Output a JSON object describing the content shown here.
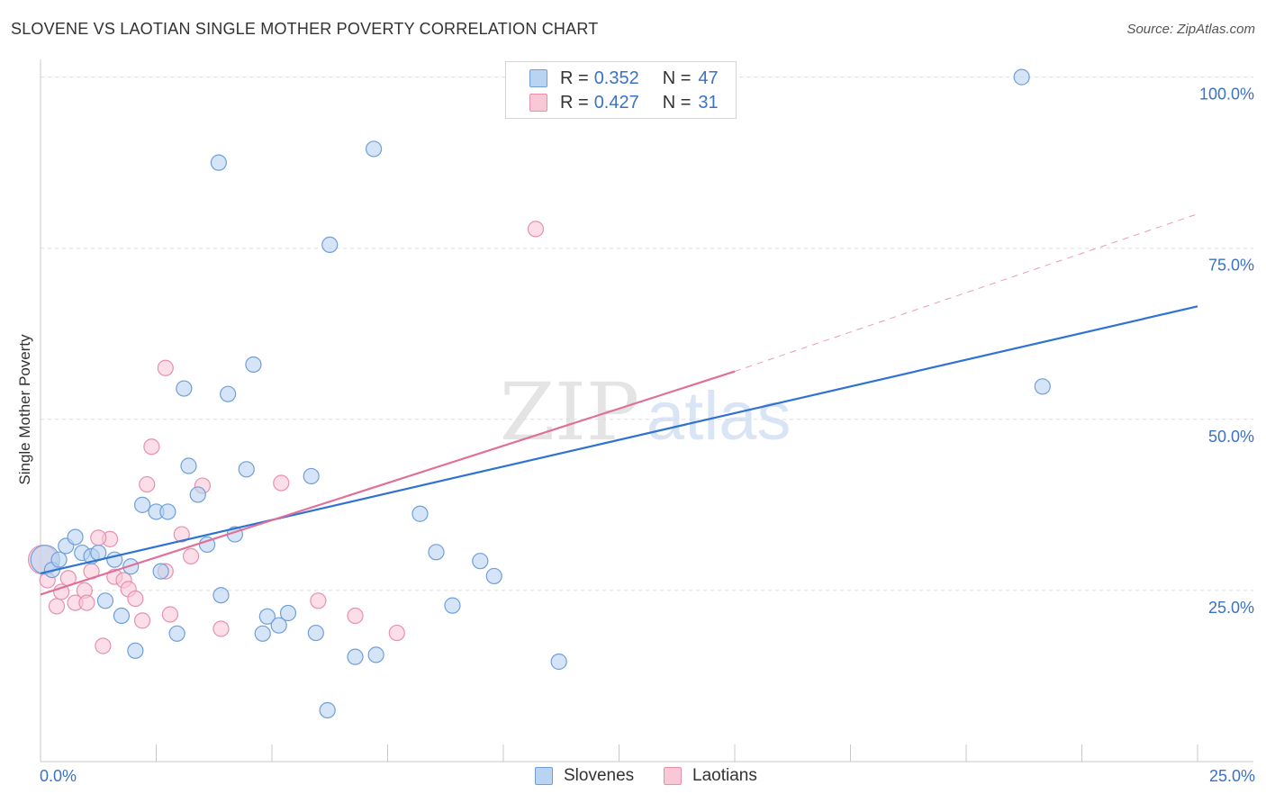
{
  "title": "SLOVENE VS LAOTIAN SINGLE MOTHER POVERTY CORRELATION CHART",
  "source": "Source: ZipAtlas.com",
  "watermark": {
    "part1": "ZIP",
    "part2": "atlas"
  },
  "legend": {
    "rows": [
      {
        "r_label": "R =",
        "r_value": "0.352",
        "n_label": "N =",
        "n_value": "47"
      },
      {
        "r_label": "R =",
        "r_value": "0.427",
        "n_label": "N =",
        "n_value": "31"
      }
    ]
  },
  "bottom_legend": {
    "series1": "Slovenes",
    "series2": "Laotians"
  },
  "x_axis": {
    "left_label": "0.0%",
    "right_label": "25.0%"
  },
  "chart_data": {
    "type": "scatter",
    "title": "SLOVENE VS LAOTIAN SINGLE MOTHER POVERTY CORRELATION CHART",
    "xlabel": "",
    "ylabel": "Single Mother Poverty",
    "xlim": [
      0,
      25
    ],
    "ylim": [
      0,
      101
    ],
    "y_ticks": [
      {
        "value": 25,
        "label": "25.0%"
      },
      {
        "value": 50,
        "label": "50.0%"
      },
      {
        "value": 75,
        "label": "75.0%"
      },
      {
        "value": 100,
        "label": "100.0%"
      }
    ],
    "colors": {
      "slovenes_fill": "#b9d3f2",
      "slovenes_stroke": "#6f9fdb",
      "slovenes_line": "#2f72d1",
      "laotians_fill": "#f8c8d7",
      "laotians_stroke": "#e890ae",
      "laotians_line": "#e0709a",
      "tick_label": "#3a72c8",
      "grid": "#dddddd"
    },
    "series": [
      {
        "name": "Slovenes",
        "points": [
          [
            0.1,
            29.5
          ],
          [
            0.25,
            28
          ],
          [
            0.4,
            29.5
          ],
          [
            0.55,
            31.5
          ],
          [
            0.75,
            32.8
          ],
          [
            0.9,
            30.5
          ],
          [
            1.1,
            30
          ],
          [
            1.25,
            30.5
          ],
          [
            1.4,
            23.5
          ],
          [
            1.6,
            29.5
          ],
          [
            1.75,
            21.3
          ],
          [
            1.95,
            28.5
          ],
          [
            2.05,
            16.2
          ],
          [
            2.2,
            37.5
          ],
          [
            2.5,
            36.5
          ],
          [
            2.6,
            27.8
          ],
          [
            2.75,
            36.5
          ],
          [
            2.95,
            18.7
          ],
          [
            3.1,
            54.5
          ],
          [
            3.2,
            43.2
          ],
          [
            3.4,
            39
          ],
          [
            3.6,
            31.7
          ],
          [
            3.85,
            87.5
          ],
          [
            3.9,
            24.3
          ],
          [
            4.05,
            53.7
          ],
          [
            4.2,
            33.2
          ],
          [
            4.45,
            42.7
          ],
          [
            4.6,
            58
          ],
          [
            4.8,
            18.7
          ],
          [
            4.9,
            21.2
          ],
          [
            5.15,
            19.9
          ],
          [
            5.35,
            21.7
          ],
          [
            5.85,
            41.7
          ],
          [
            5.95,
            18.8
          ],
          [
            6.2,
            7.5
          ],
          [
            6.25,
            75.5
          ],
          [
            6.8,
            15.3
          ],
          [
            7.2,
            89.5
          ],
          [
            7.25,
            15.6
          ],
          [
            8.2,
            36.2
          ],
          [
            8.55,
            30.6
          ],
          [
            8.9,
            22.8
          ],
          [
            9.5,
            29.3
          ],
          [
            9.8,
            27.1
          ],
          [
            11.2,
            14.6
          ],
          [
            21.2,
            100
          ],
          [
            21.65,
            54.8
          ]
        ]
      },
      {
        "name": "Laotians",
        "points": [
          [
            0.05,
            29.5
          ],
          [
            0.15,
            26.5
          ],
          [
            0.35,
            22.7
          ],
          [
            0.45,
            24.8
          ],
          [
            0.6,
            26.8
          ],
          [
            0.75,
            23.2
          ],
          [
            0.95,
            25
          ],
          [
            1.0,
            23.2
          ],
          [
            1.1,
            27.8
          ],
          [
            1.35,
            16.9
          ],
          [
            1.5,
            32.5
          ],
          [
            1.6,
            27
          ],
          [
            1.8,
            26.5
          ],
          [
            1.9,
            25.2
          ],
          [
            2.05,
            23.8
          ],
          [
            2.2,
            20.6
          ],
          [
            2.3,
            40.5
          ],
          [
            2.4,
            46
          ],
          [
            2.7,
            27.8
          ],
          [
            2.7,
            57.5
          ],
          [
            2.8,
            21.5
          ],
          [
            3.05,
            33.2
          ],
          [
            3.25,
            30
          ],
          [
            3.5,
            40.3
          ],
          [
            3.9,
            19.4
          ],
          [
            5.2,
            40.7
          ],
          [
            6.0,
            23.5
          ],
          [
            6.8,
            21.3
          ],
          [
            7.7,
            18.8
          ],
          [
            10.7,
            77.8
          ],
          [
            1.25,
            32.7
          ]
        ]
      }
    ],
    "trend_lines": [
      {
        "series": "Slovenes",
        "x": [
          0,
          25
        ],
        "y": [
          27.5,
          66.5
        ],
        "style": "solid"
      },
      {
        "series": "Laotians",
        "x": [
          0,
          15
        ],
        "y": [
          24.4,
          57
        ],
        "style": "solid"
      },
      {
        "series": "Laotians",
        "x": [
          15,
          25
        ],
        "y": [
          57,
          80
        ],
        "style": "dashed"
      }
    ]
  }
}
